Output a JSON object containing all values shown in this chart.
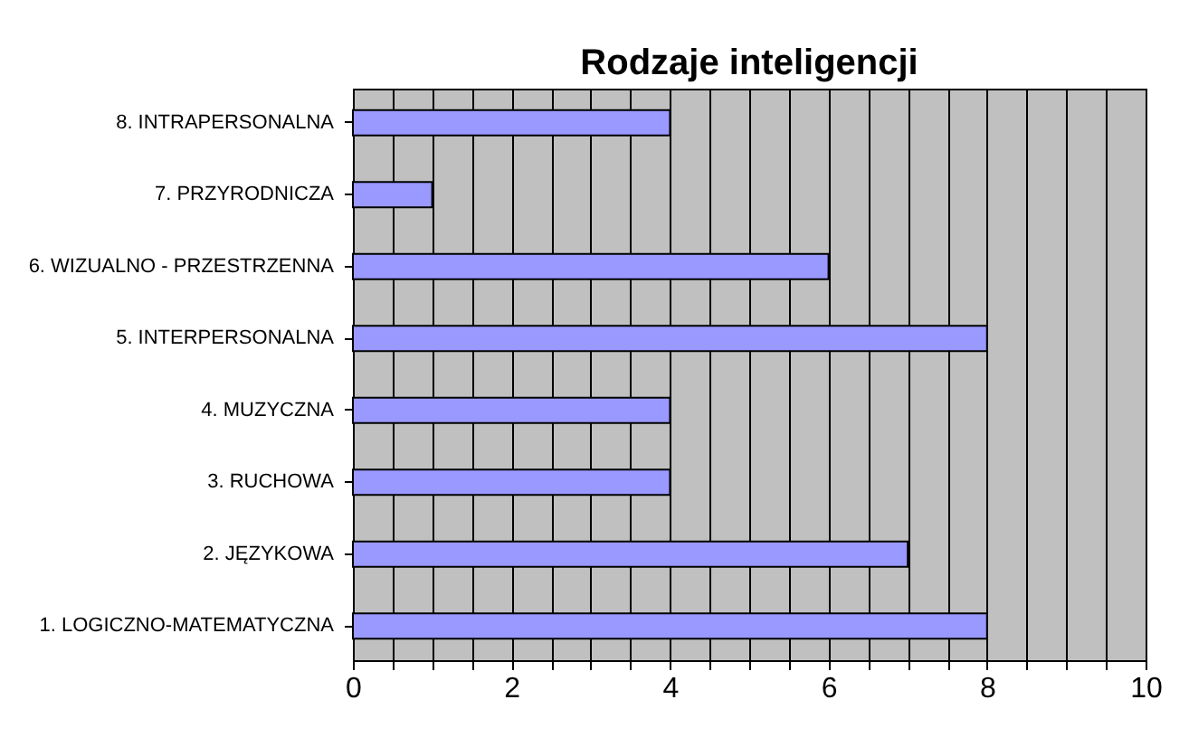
{
  "chart_data": {
    "type": "bar",
    "orientation": "horizontal",
    "title": "Rodzaje inteligencji",
    "categories": [
      "8. INTRAPERSONALNA",
      "7. PRZYRODNICZA",
      "6. WIZUALNO - PRZESTRZENNA",
      "5. INTERPERSONALNA",
      "4. MUZYCZNA",
      "3. RUCHOWA",
      "2. JĘZYKOWA",
      "1. LOGICZNO-MATEMATYCZNA"
    ],
    "values": [
      4,
      1,
      6,
      8,
      4,
      4,
      7,
      8
    ],
    "color": "#9999ff",
    "xlim": [
      0,
      10
    ],
    "xticks": [
      0,
      {
        "value": 0.5,
        "label": null
      },
      {
        "value": 1,
        "label": null
      },
      {
        "value": 1.5,
        "label": null
      },
      2,
      {
        "value": 2.5,
        "label": null
      },
      {
        "value": 3,
        "label": null
      },
      {
        "value": 3.5,
        "label": null
      },
      4,
      {
        "value": 4.5,
        "label": null
      },
      {
        "value": 5,
        "label": null
      },
      {
        "value": 5.5,
        "label": null
      },
      6,
      {
        "value": 6.5,
        "label": null
      },
      {
        "value": 7,
        "label": null
      },
      {
        "value": 7.5,
        "label": null
      },
      8,
      {
        "value": 8.5,
        "label": null
      },
      {
        "value": 9,
        "label": null
      },
      {
        "value": 9.5,
        "label": null
      },
      10
    ],
    "grid": "x"
  }
}
